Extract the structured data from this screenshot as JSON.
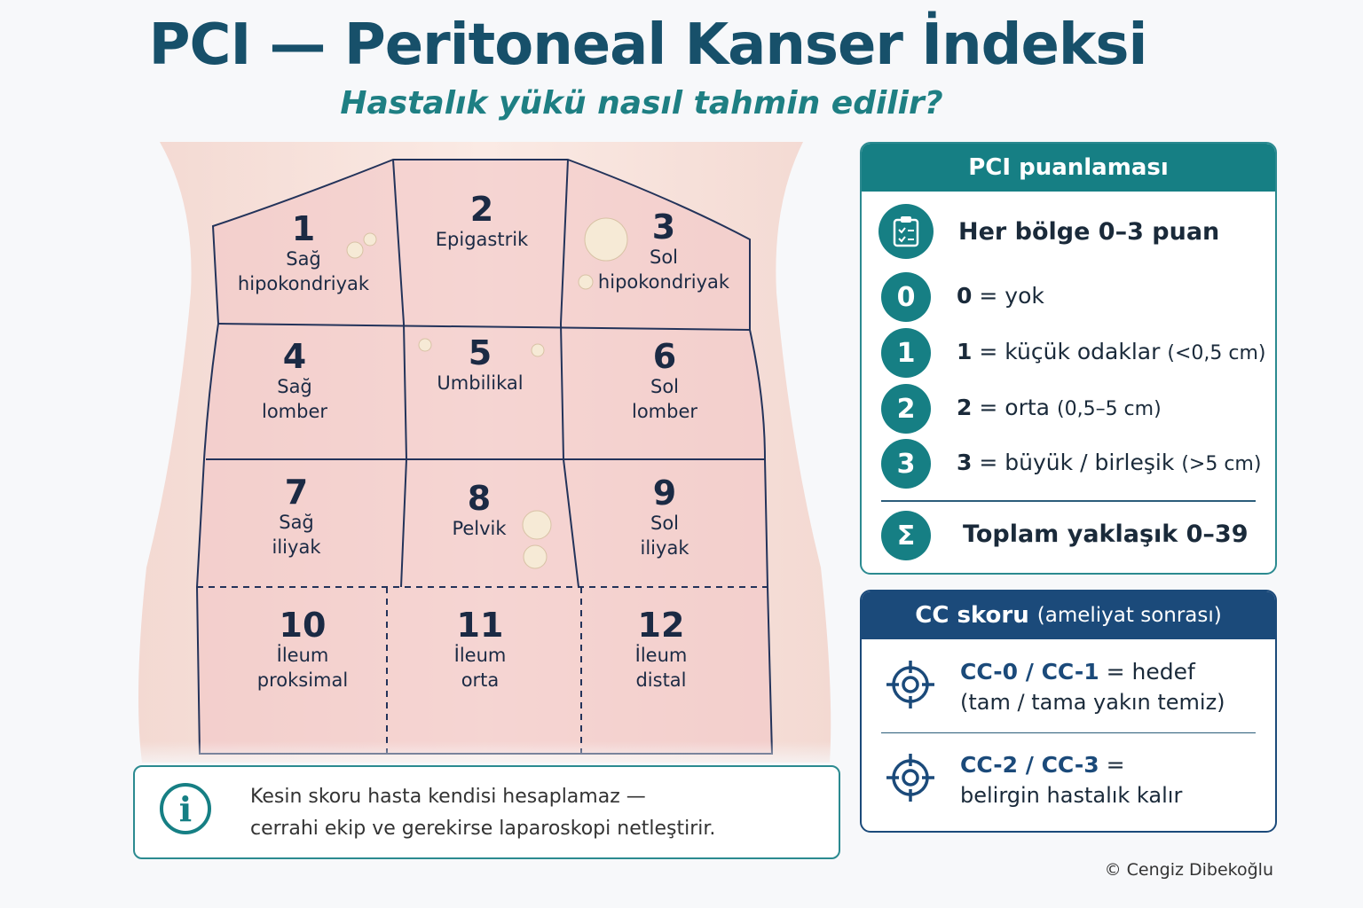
{
  "header": {
    "title": "PCI — Peritoneal Kanser İndeksi",
    "subtitle": "Hastalık yükü nasıl tahmin edilir?"
  },
  "regions": [
    {
      "number": "1",
      "lines": [
        "Sağ",
        "hipokondriyak"
      ]
    },
    {
      "number": "2",
      "lines": [
        "Epigastrik"
      ]
    },
    {
      "number": "3",
      "lines": [
        "Sol",
        "hipokondriyak"
      ]
    },
    {
      "number": "4",
      "lines": [
        "Sağ",
        "lomber"
      ]
    },
    {
      "number": "5",
      "lines": [
        "Umbilikal"
      ]
    },
    {
      "number": "6",
      "lines": [
        "Sol",
        "lomber"
      ]
    },
    {
      "number": "7",
      "lines": [
        "Sağ",
        "iliyak"
      ]
    },
    {
      "number": "8",
      "lines": [
        "Pelvik"
      ]
    },
    {
      "number": "9",
      "lines": [
        "Sol",
        "iliyak"
      ]
    },
    {
      "number": "10",
      "lines": [
        "İleum",
        "proksimal"
      ]
    },
    {
      "number": "11",
      "lines": [
        "İleum",
        "orta"
      ]
    },
    {
      "number": "12",
      "lines": [
        "İleum",
        "distal"
      ]
    }
  ],
  "scoring": {
    "title": "PCI puanlaması",
    "intro": "Her bölge 0–3 puan",
    "items": [
      {
        "icon": "0",
        "key": "0",
        "text": "= yok",
        "note": ""
      },
      {
        "icon": "1",
        "key": "1",
        "text": "= küçük odaklar",
        "note": "(<0,5 cm)"
      },
      {
        "icon": "2",
        "key": "2",
        "text": "= orta",
        "note": "(0,5–5 cm)"
      },
      {
        "icon": "3",
        "key": "3",
        "text": "= büyük / birleşik",
        "note": "(>5 cm)"
      }
    ],
    "total_icon": "Σ",
    "total": "Toplam yaklaşık 0–39"
  },
  "cc": {
    "title": "CC skoru",
    "title_note": "(ameliyat sonrası)",
    "items": [
      {
        "key": "CC-0 / CC-1",
        "text": "= hedef",
        "line2": "(tam / tama yakın temiz)"
      },
      {
        "key": "CC-2 / CC-3",
        "text": "=",
        "line2": "belirgin hastalık kalır"
      }
    ]
  },
  "note": {
    "icon": "i",
    "lines": [
      "Kesin skoru hasta kendisi hesaplamaz —",
      "cerrahi ekip ve gerekirse laparoskopi netleştirir."
    ]
  },
  "footer": "© Cengiz Dibekoğlu"
}
